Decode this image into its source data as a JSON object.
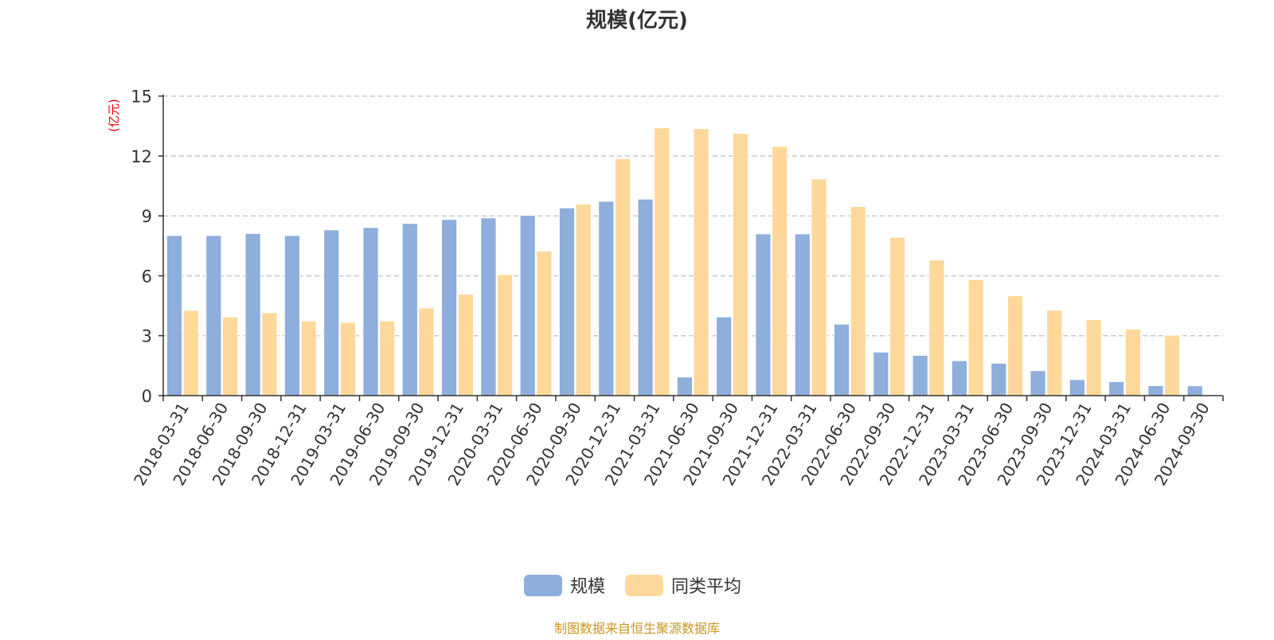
{
  "chart_data": {
    "type": "bar",
    "title": "规模(亿元)",
    "ylabel": "(亿元)",
    "ylim": [
      0,
      15
    ],
    "yticks": [
      0,
      3,
      6,
      9,
      12,
      15
    ],
    "grid": true,
    "legend_position": "bottom",
    "categories": [
      "2018-03-31",
      "2018-06-30",
      "2018-09-30",
      "2018-12-31",
      "2019-03-31",
      "2019-06-30",
      "2019-09-30",
      "2019-12-31",
      "2020-03-31",
      "2020-06-30",
      "2020-09-30",
      "2020-12-31",
      "2021-03-31",
      "2021-06-30",
      "2021-09-30",
      "2021-12-31",
      "2022-03-31",
      "2022-06-30",
      "2022-09-30",
      "2022-12-31",
      "2023-03-31",
      "2023-06-30",
      "2023-09-30",
      "2023-12-31",
      "2024-03-31",
      "2024-06-30",
      "2024-09-30"
    ],
    "series": [
      {
        "name": "规模",
        "color": "#8eaedb",
        "values": [
          8.02,
          8.02,
          8.12,
          8.02,
          8.3,
          8.42,
          8.62,
          8.82,
          8.9,
          9.03,
          9.4,
          9.73,
          9.84,
          0.93,
          3.94,
          8.1,
          8.1,
          3.58,
          2.18,
          2.02,
          1.75,
          1.62,
          1.25,
          0.8,
          0.7,
          0.5,
          0.49
        ]
      },
      {
        "name": "同类平均",
        "color": "#fed89a",
        "values": [
          4.27,
          3.94,
          4.15,
          3.74,
          3.66,
          3.74,
          4.39,
          5.08,
          6.06,
          7.24,
          9.59,
          11.87,
          13.41,
          13.37,
          13.13,
          12.48,
          10.85,
          9.47,
          7.93,
          6.79,
          5.81,
          5.0,
          4.28,
          3.8,
          3.33,
          3.03,
          null
        ]
      }
    ]
  },
  "footer": "制图数据来自恒生聚源数据库"
}
